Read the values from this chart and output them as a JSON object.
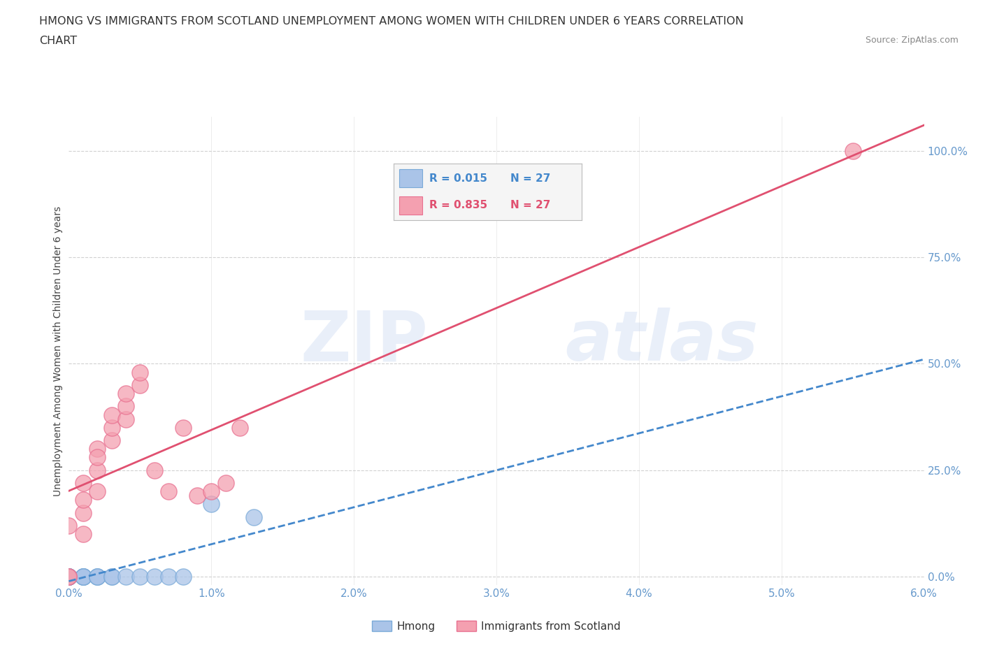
{
  "title_line1": "HMONG VS IMMIGRANTS FROM SCOTLAND UNEMPLOYMENT AMONG WOMEN WITH CHILDREN UNDER 6 YEARS CORRELATION",
  "title_line2": "CHART",
  "source": "Source: ZipAtlas.com",
  "ylabel": "Unemployment Among Women with Children Under 6 years",
  "xlim": [
    0.0,
    0.06
  ],
  "ylim": [
    -0.02,
    1.08
  ],
  "xticks": [
    0.0,
    0.01,
    0.02,
    0.03,
    0.04,
    0.05,
    0.06
  ],
  "xticklabels": [
    "0.0%",
    "1.0%",
    "2.0%",
    "3.0%",
    "4.0%",
    "5.0%",
    "6.0%"
  ],
  "yticks": [
    0.0,
    0.25,
    0.5,
    0.75,
    1.0
  ],
  "yticklabels": [
    "0.0%",
    "25.0%",
    "50.0%",
    "75.0%",
    "100.0%"
  ],
  "hmong_color": "#aac4e8",
  "scotland_color": "#f4a0b0",
  "hmong_edge_color": "#7aaad8",
  "scotland_edge_color": "#e87090",
  "hmong_line_color": "#4488cc",
  "scotland_line_color": "#e05070",
  "legend_R_hmong": "R = 0.015",
  "legend_N_hmong": "N = 27",
  "legend_R_scotland": "R = 0.835",
  "legend_N_scotland": "N = 27",
  "watermark_zip": "ZIP",
  "watermark_atlas": "atlas",
  "background_color": "#ffffff",
  "grid_color": "#cccccc",
  "tick_color": "#6699cc",
  "title_color": "#333333",
  "hmong_x": [
    0.0,
    0.0,
    0.0,
    0.0,
    0.0,
    0.0,
    0.0,
    0.0,
    0.0,
    0.0,
    0.001,
    0.001,
    0.001,
    0.001,
    0.001,
    0.002,
    0.002,
    0.002,
    0.003,
    0.003,
    0.004,
    0.005,
    0.006,
    0.007,
    0.008,
    0.01,
    0.013
  ],
  "hmong_y": [
    0.0,
    0.0,
    0.0,
    0.0,
    0.0,
    0.0,
    0.0,
    0.0,
    0.0,
    0.0,
    0.0,
    0.0,
    0.0,
    0.0,
    0.0,
    0.0,
    0.0,
    0.0,
    0.0,
    0.0,
    0.0,
    0.0,
    0.0,
    0.0,
    0.0,
    0.17,
    0.14
  ],
  "scotland_x": [
    0.0,
    0.0,
    0.0,
    0.001,
    0.001,
    0.001,
    0.001,
    0.002,
    0.002,
    0.002,
    0.002,
    0.003,
    0.003,
    0.003,
    0.004,
    0.004,
    0.004,
    0.005,
    0.005,
    0.006,
    0.007,
    0.008,
    0.009,
    0.01,
    0.011,
    0.012,
    0.055
  ],
  "scotland_y": [
    0.0,
    0.0,
    0.12,
    0.1,
    0.15,
    0.18,
    0.22,
    0.2,
    0.25,
    0.3,
    0.28,
    0.32,
    0.35,
    0.38,
    0.37,
    0.4,
    0.43,
    0.45,
    0.48,
    0.25,
    0.2,
    0.35,
    0.19,
    0.2,
    0.22,
    0.35,
    1.0
  ]
}
